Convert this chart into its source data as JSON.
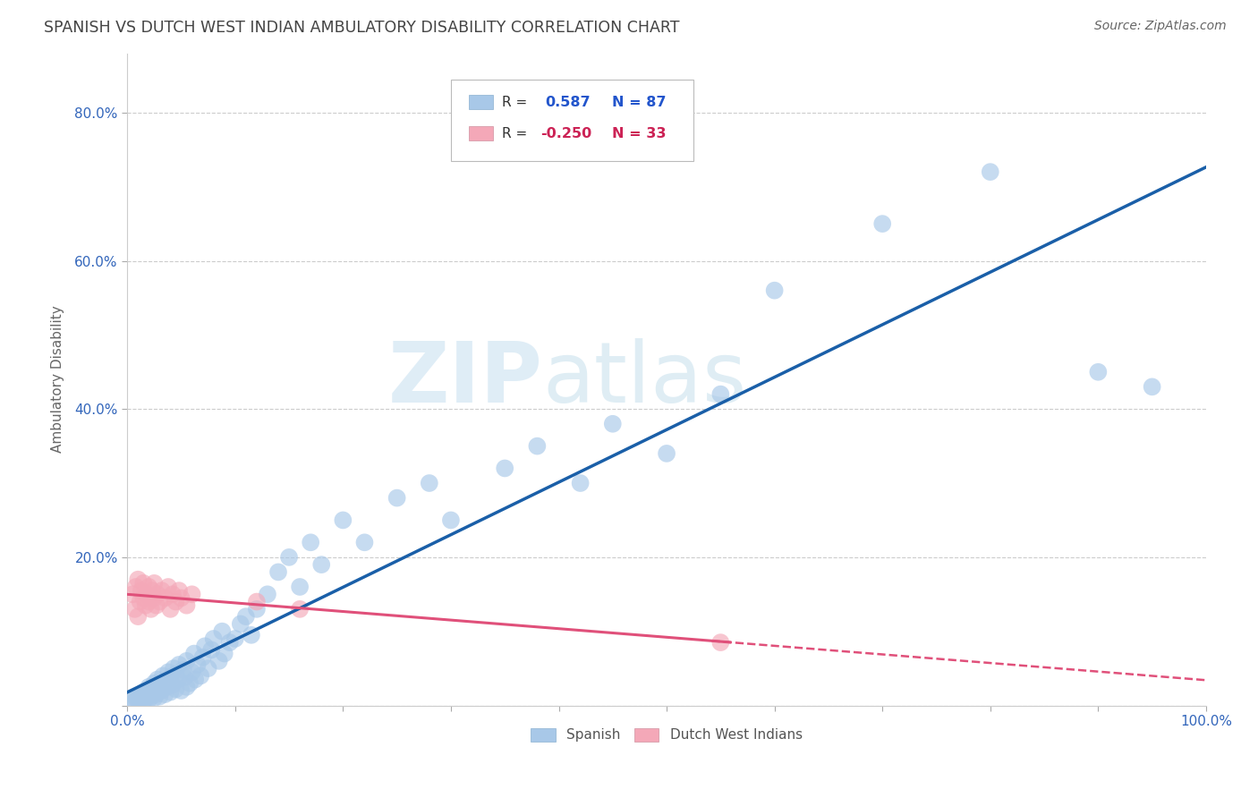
{
  "title": "SPANISH VS DUTCH WEST INDIAN AMBULATORY DISABILITY CORRELATION CHART",
  "source": "Source: ZipAtlas.com",
  "ylabel": "Ambulatory Disability",
  "watermark_zip": "ZIP",
  "watermark_atlas": "atlas",
  "xlim": [
    0.0,
    1.0
  ],
  "ylim": [
    0.0,
    0.88
  ],
  "yticks": [
    0.0,
    0.2,
    0.4,
    0.6,
    0.8
  ],
  "ytick_labels": [
    "",
    "20.0%",
    "40.0%",
    "60.0%",
    "80.0%"
  ],
  "xtick_labels": [
    "0.0%",
    "",
    "",
    "",
    "",
    "",
    "",
    "",
    "",
    "",
    "100.0%"
  ],
  "spanish_R": 0.587,
  "spanish_N": 87,
  "dutch_R": -0.25,
  "dutch_N": 33,
  "spanish_color": "#a8c8e8",
  "dutch_color": "#f4a8b8",
  "spanish_line_color": "#1a5fa8",
  "dutch_line_color": "#e0507a",
  "title_color": "#444444",
  "legend_text_blue": "#2255cc",
  "legend_text_pink": "#cc2255",
  "axis_tick_color": "#3366bb",
  "grid_color": "#cccccc",
  "background_color": "#ffffff",
  "spanish_x": [
    0.005,
    0.007,
    0.008,
    0.01,
    0.01,
    0.012,
    0.013,
    0.015,
    0.015,
    0.016,
    0.018,
    0.018,
    0.02,
    0.02,
    0.02,
    0.022,
    0.022,
    0.023,
    0.025,
    0.025,
    0.025,
    0.027,
    0.028,
    0.028,
    0.03,
    0.03,
    0.032,
    0.033,
    0.035,
    0.035,
    0.037,
    0.038,
    0.04,
    0.04,
    0.042,
    0.043,
    0.045,
    0.045,
    0.047,
    0.048,
    0.05,
    0.052,
    0.053,
    0.055,
    0.055,
    0.058,
    0.06,
    0.062,
    0.063,
    0.065,
    0.068,
    0.07,
    0.072,
    0.075,
    0.078,
    0.08,
    0.085,
    0.088,
    0.09,
    0.095,
    0.1,
    0.105,
    0.11,
    0.115,
    0.12,
    0.13,
    0.14,
    0.15,
    0.16,
    0.17,
    0.18,
    0.2,
    0.22,
    0.25,
    0.28,
    0.3,
    0.35,
    0.38,
    0.42,
    0.45,
    0.5,
    0.55,
    0.6,
    0.7,
    0.8,
    0.9,
    0.95
  ],
  "spanish_y": [
    0.008,
    0.005,
    0.01,
    0.007,
    0.012,
    0.009,
    0.015,
    0.006,
    0.018,
    0.012,
    0.01,
    0.02,
    0.008,
    0.015,
    0.025,
    0.012,
    0.022,
    0.018,
    0.01,
    0.02,
    0.03,
    0.015,
    0.025,
    0.035,
    0.012,
    0.028,
    0.02,
    0.04,
    0.015,
    0.032,
    0.025,
    0.045,
    0.018,
    0.038,
    0.028,
    0.05,
    0.022,
    0.042,
    0.035,
    0.055,
    0.02,
    0.048,
    0.038,
    0.025,
    0.06,
    0.03,
    0.045,
    0.07,
    0.035,
    0.055,
    0.04,
    0.065,
    0.08,
    0.05,
    0.075,
    0.09,
    0.06,
    0.1,
    0.07,
    0.085,
    0.09,
    0.11,
    0.12,
    0.095,
    0.13,
    0.15,
    0.18,
    0.2,
    0.16,
    0.22,
    0.19,
    0.25,
    0.22,
    0.28,
    0.3,
    0.25,
    0.32,
    0.35,
    0.3,
    0.38,
    0.34,
    0.42,
    0.56,
    0.65,
    0.72,
    0.45,
    0.43
  ],
  "dutch_x": [
    0.005,
    0.007,
    0.008,
    0.01,
    0.01,
    0.012,
    0.013,
    0.015,
    0.015,
    0.017,
    0.018,
    0.02,
    0.02,
    0.022,
    0.023,
    0.025,
    0.025,
    0.027,
    0.028,
    0.03,
    0.032,
    0.035,
    0.038,
    0.04,
    0.042,
    0.045,
    0.048,
    0.05,
    0.055,
    0.06,
    0.12,
    0.16,
    0.55
  ],
  "dutch_y": [
    0.15,
    0.13,
    0.16,
    0.12,
    0.17,
    0.14,
    0.155,
    0.145,
    0.165,
    0.135,
    0.15,
    0.14,
    0.16,
    0.13,
    0.155,
    0.145,
    0.165,
    0.135,
    0.15,
    0.14,
    0.155,
    0.145,
    0.16,
    0.13,
    0.15,
    0.14,
    0.155,
    0.145,
    0.135,
    0.15,
    0.14,
    0.13,
    0.085
  ]
}
